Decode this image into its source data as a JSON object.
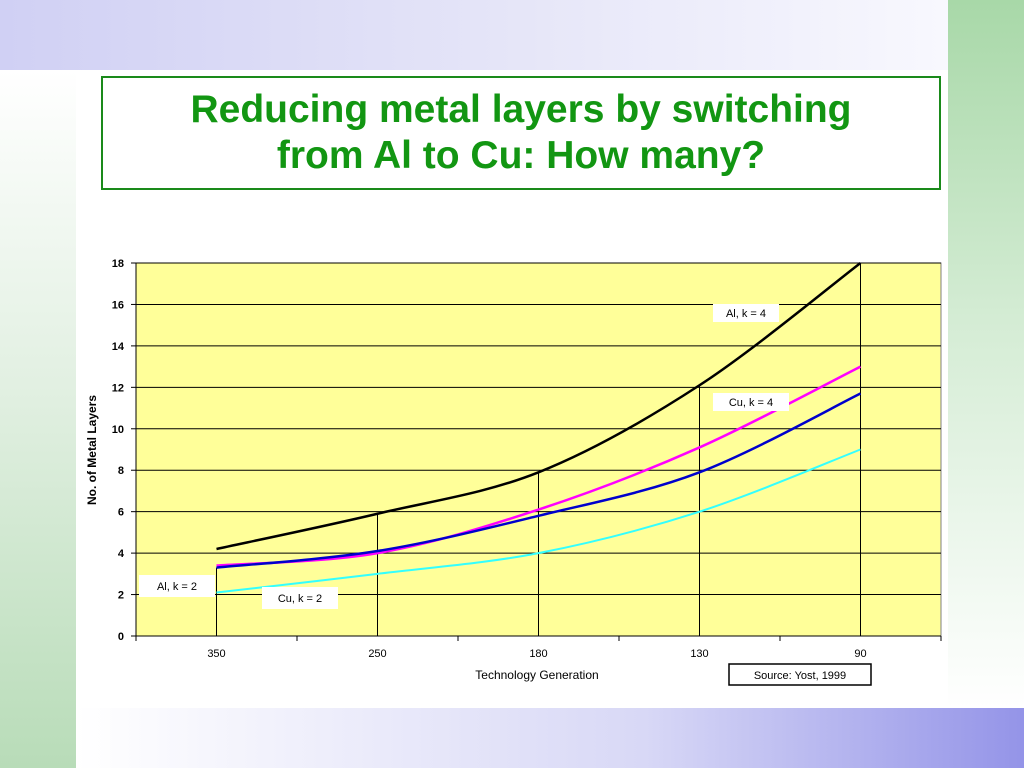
{
  "slide": {
    "title_line1": "Reducing metal layers by switching",
    "title_line2": "from Al to Cu: How many?"
  },
  "colors": {
    "plot_background": "#ffff99",
    "title_green": "#129612",
    "series": [
      "#000000",
      "#ff00ff",
      "#0000cc",
      "#33ffff"
    ]
  },
  "chart_data": {
    "type": "line",
    "categories": [
      "350",
      "250",
      "180",
      "130",
      "90"
    ],
    "xlabel": "Technology Generation",
    "ylabel": "No. of Metal Layers",
    "ylim": [
      0,
      18
    ],
    "yticks": [
      0,
      2,
      4,
      6,
      8,
      10,
      12,
      14,
      16,
      18
    ],
    "grid": true,
    "series": [
      {
        "name": "Al, k = 4",
        "color": "#000000",
        "values": [
          4.2,
          5.9,
          7.9,
          12.1,
          18.0
        ]
      },
      {
        "name": "Cu, k = 4",
        "color": "#ff00ff",
        "values": [
          3.4,
          4.0,
          6.1,
          9.1,
          13.0
        ]
      },
      {
        "name": "Al, k = 2",
        "color": "#0000cc",
        "values": [
          3.3,
          4.1,
          5.8,
          7.9,
          11.7
        ]
      },
      {
        "name": "Cu, k = 2",
        "color": "#33ffff",
        "values": [
          2.1,
          3.0,
          4.0,
          6.0,
          9.0
        ]
      }
    ],
    "annotations": [
      {
        "text": "Al, k = 4"
      },
      {
        "text": "Cu, k = 4"
      },
      {
        "text": "Al, k = 2"
      },
      {
        "text": "Cu, k = 2"
      }
    ],
    "source": "Source: Yost, 1999"
  }
}
